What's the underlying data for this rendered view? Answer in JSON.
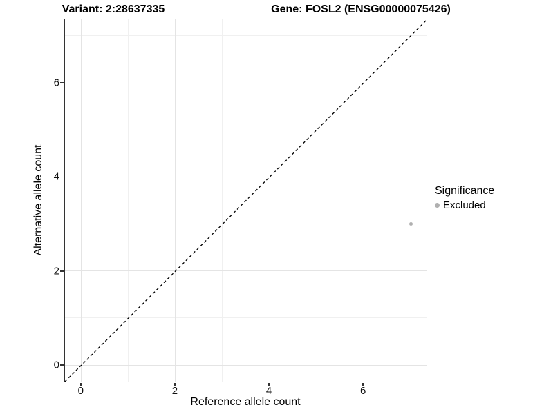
{
  "titles": {
    "variant": "Variant: 2:28637335",
    "gene": "Gene: FOSL2 (ENSG00000075426)"
  },
  "chart_data": {
    "type": "scatter",
    "xlabel": "Reference allele count",
    "ylabel": "Alternative allele count",
    "xlim": [
      -0.35,
      7.35
    ],
    "ylim": [
      -0.35,
      7.35
    ],
    "x_ticks": [
      0,
      2,
      4,
      6
    ],
    "y_ticks": [
      0,
      2,
      4,
      6
    ],
    "x_minor_ticks": [
      1,
      3,
      5,
      7
    ],
    "y_minor_ticks": [
      1,
      3,
      5,
      7
    ],
    "grid": "on",
    "reference_line": {
      "kind": "identity",
      "equation": "y = x",
      "style": "dashed",
      "color": "#000000"
    },
    "series": [
      {
        "name": "Excluded",
        "color": "#b0b0b0",
        "points": [
          {
            "x": 7,
            "y": 3
          }
        ]
      }
    ],
    "legend": {
      "title": "Significance",
      "position": "right",
      "items": [
        {
          "label": "Excluded",
          "color": "#b0b0b0"
        }
      ]
    }
  },
  "colors": {
    "background": "#ffffff",
    "grid_major": "#e4e4e4",
    "grid_minor": "#f0f0f0",
    "axis_line": "#333333",
    "point_gray": "#b0b0b0"
  }
}
